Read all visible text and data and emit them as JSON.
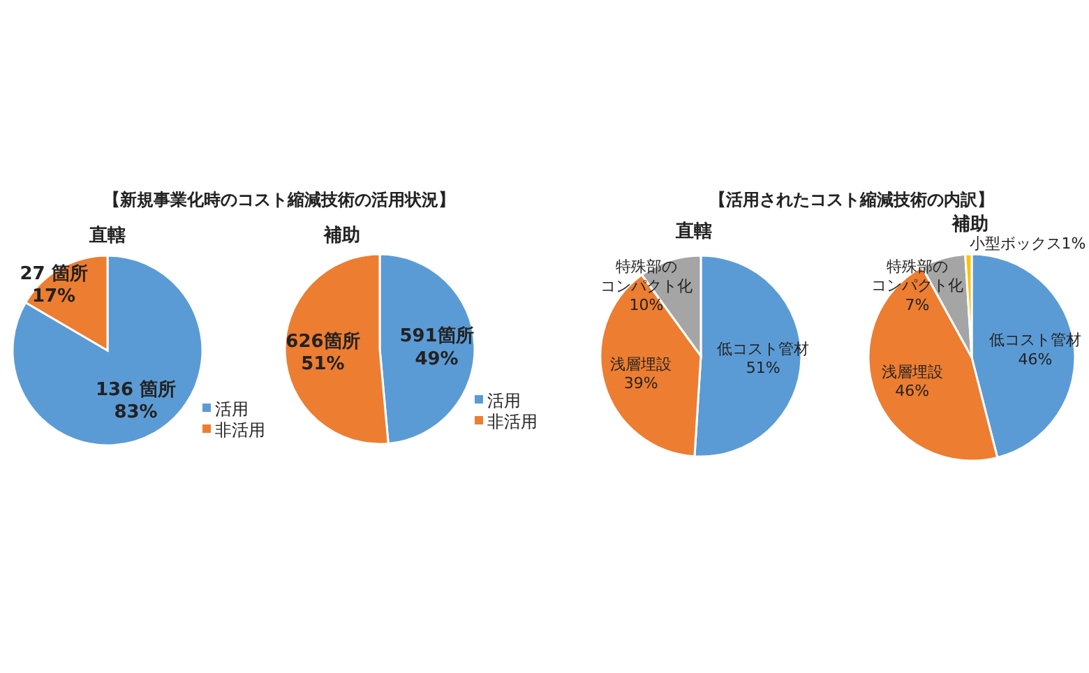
{
  "chart_data": [
    {
      "type": "pie",
      "title": "直轄",
      "annotations": [
        "【新規事業化時のコスト縮減技術の活用状況】"
      ],
      "categories": [
        "活用",
        "非活用"
      ],
      "values": [
        136,
        27
      ],
      "colors": [
        "#5b9bd5",
        "#ed7d31"
      ],
      "value_labels": [
        "136 箇所\n83%",
        "27 箇所\n17%"
      ],
      "legend": "bottom right"
    },
    {
      "type": "pie",
      "title": "補助",
      "categories": [
        "活用",
        "非活用"
      ],
      "values": [
        591,
        626
      ],
      "colors": [
        "#5b9bd5",
        "#ed7d31"
      ],
      "value_labels": [
        "591箇所\n49%",
        "626箇所\n51%"
      ],
      "legend": "bottom right"
    },
    {
      "type": "pie",
      "title": "直轄",
      "annotations": [
        "【活用されたコスト縮減技術の内訳】"
      ],
      "categories": [
        "低コスト管材",
        "浅層埋設",
        "特殊部のコンパクト化"
      ],
      "values": [
        51,
        39,
        10
      ],
      "colors": [
        "#5b9bd5",
        "#ed7d31",
        "#a5a5a5"
      ],
      "value_labels": [
        "51%",
        "39%",
        "10%"
      ]
    },
    {
      "type": "pie",
      "title": "補助",
      "categories": [
        "低コスト管材",
        "浅層埋設",
        "特殊部のコンパクト化",
        "小型ボックス"
      ],
      "values": [
        46,
        46,
        7,
        1
      ],
      "colors": [
        "#5b9bd5",
        "#ed7d31",
        "#a5a5a5",
        "#ffc000"
      ],
      "value_labels": [
        "46%",
        "46%",
        "7%",
        "1%"
      ]
    }
  ]
}
